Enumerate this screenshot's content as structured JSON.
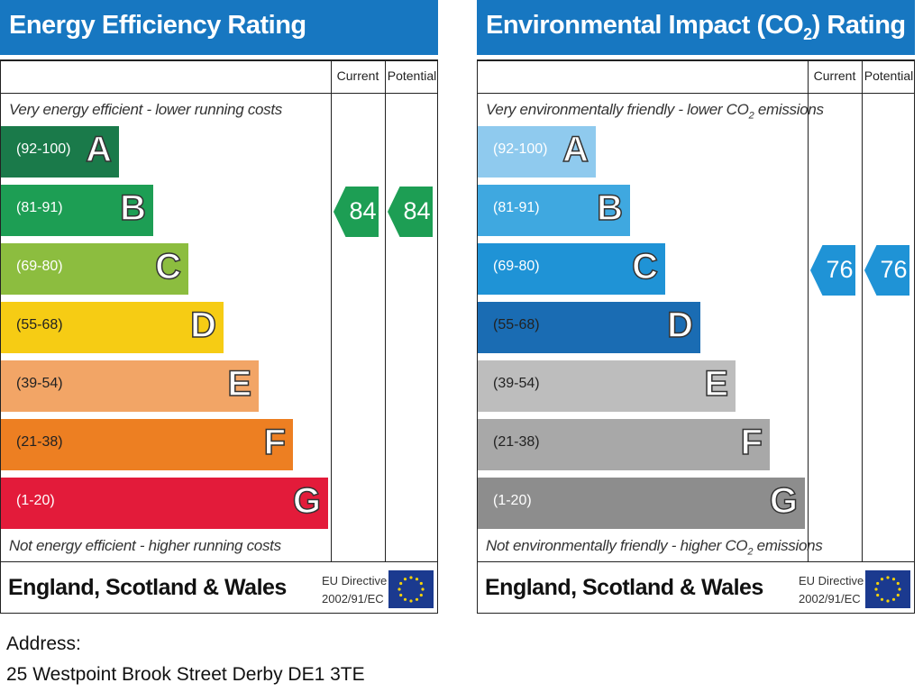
{
  "chart_data": [
    {
      "type": "bar",
      "title": "Energy Efficiency Rating",
      "column_headers": {
        "current": "Current",
        "potential": "Potential"
      },
      "top_caption": "Very energy efficient - lower running costs",
      "bottom_caption": "Not energy efficient - higher running costs",
      "bands": [
        {
          "letter": "A",
          "range": "(92-100)",
          "color": "#1a7a4a",
          "length": 0.27
        },
        {
          "letter": "B",
          "range": "(81-91)",
          "color": "#1d9e54",
          "length": 0.35
        },
        {
          "letter": "C",
          "range": "(69-80)",
          "color": "#8cbd3f",
          "length": 0.43
        },
        {
          "letter": "D",
          "range": "(55-68)",
          "color": "#f6cc14",
          "length": 0.51
        },
        {
          "letter": "E",
          "range": "(39-54)",
          "color": "#f2a566",
          "length": 0.59
        },
        {
          "letter": "F",
          "range": "(21-38)",
          "color": "#ed7f22",
          "length": 0.67
        },
        {
          "letter": "G",
          "range": "(1-20)",
          "color": "#e31b3a",
          "length": 0.75
        }
      ],
      "current": {
        "value": 84,
        "band": "B",
        "color": "#1d9e54"
      },
      "potential": {
        "value": 84,
        "band": "B",
        "color": "#1d9e54"
      },
      "footer_region": "England, Scotland & Wales",
      "eu_directive": [
        "EU Directive",
        "2002/91/EC"
      ]
    },
    {
      "type": "bar",
      "title": "Environmental Impact (CO2) Rating",
      "column_headers": {
        "current": "Current",
        "potential": "Potential"
      },
      "top_caption": "Very environmentally friendly - lower CO2 emissions",
      "bottom_caption": "Not environmentally friendly - higher CO2 emissions",
      "bands": [
        {
          "letter": "A",
          "range": "(92-100)",
          "color": "#8fcaee",
          "length": 0.27
        },
        {
          "letter": "B",
          "range": "(81-91)",
          "color": "#3fa8e0",
          "length": 0.35
        },
        {
          "letter": "C",
          "range": "(69-80)",
          "color": "#1f93d6",
          "length": 0.43
        },
        {
          "letter": "D",
          "range": "(55-68)",
          "color": "#1a6cb3",
          "length": 0.51
        },
        {
          "letter": "E",
          "range": "(39-54)",
          "color": "#bdbdbd",
          "length": 0.59
        },
        {
          "letter": "F",
          "range": "(21-38)",
          "color": "#a8a8a8",
          "length": 0.67
        },
        {
          "letter": "G",
          "range": "(1-20)",
          "color": "#8d8d8d",
          "length": 0.75
        }
      ],
      "current": {
        "value": 76,
        "band": "C",
        "color": "#1f93d6"
      },
      "potential": {
        "value": 76,
        "band": "C",
        "color": "#1f93d6"
      },
      "footer_region": "England, Scotland & Wales",
      "eu_directive": [
        "EU Directive",
        "2002/91/EC"
      ]
    }
  ],
  "address": {
    "label": "Address:",
    "value": "25 Westpoint Brook Street Derby DE1 3TE"
  }
}
